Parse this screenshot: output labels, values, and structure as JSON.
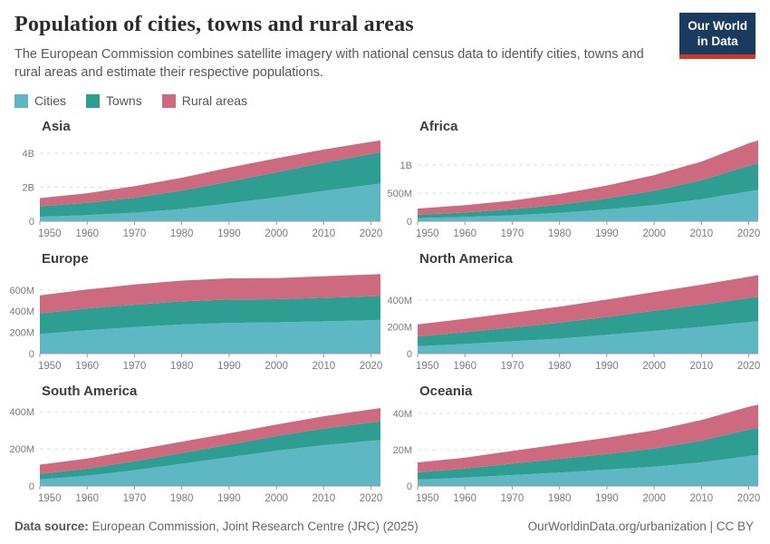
{
  "header": {
    "title": "Population of cities, towns and rural areas",
    "subtitle": "The European Commission combines satellite imagery with national census data to identify cities, towns and rural areas and estimate their respective populations."
  },
  "logo": {
    "line1": "Our World",
    "line2": "in Data",
    "bg_color": "#1a3a60",
    "accent_color": "#d0362a"
  },
  "legend": [
    {
      "label": "Cities",
      "color": "#5eb8c4"
    },
    {
      "label": "Towns",
      "color": "#2f9e92"
    },
    {
      "label": "Rural areas",
      "color": "#cd6a80"
    }
  ],
  "footer": {
    "source_label": "Data source:",
    "source": "European Commission, Joint Research Centre (JRC) (2025)",
    "credit": "OurWorldinData.org/urbanization | CC BY"
  },
  "chart_data": [
    {
      "type": "area",
      "stacked": true,
      "title": "Asia",
      "unit": "billion people",
      "x": [
        1950,
        1960,
        1970,
        1980,
        1990,
        2000,
        2010,
        2020,
        2022
      ],
      "xlim": [
        1950,
        2022
      ],
      "xticks": [
        1950,
        1960,
        1970,
        1980,
        1990,
        2000,
        2010,
        2020
      ],
      "yticks": [
        {
          "v": 0,
          "label": "0"
        },
        {
          "v": 2,
          "label": "2B"
        },
        {
          "v": 4,
          "label": "4B"
        }
      ],
      "ymax": 4.8,
      "series": [
        {
          "name": "Cities",
          "values": [
            0.26,
            0.36,
            0.5,
            0.72,
            1.05,
            1.4,
            1.78,
            2.15,
            2.22
          ]
        },
        {
          "name": "Towns",
          "values": [
            0.62,
            0.72,
            0.88,
            1.08,
            1.28,
            1.48,
            1.66,
            1.8,
            1.83
          ]
        },
        {
          "name": "Rural areas",
          "values": [
            0.48,
            0.57,
            0.68,
            0.76,
            0.82,
            0.82,
            0.78,
            0.72,
            0.7
          ]
        }
      ]
    },
    {
      "type": "area",
      "stacked": true,
      "title": "Africa",
      "unit": "million people",
      "x": [
        1950,
        1960,
        1970,
        1980,
        1990,
        2000,
        2010,
        2020,
        2022
      ],
      "xlim": [
        1950,
        2022
      ],
      "xticks": [
        1950,
        1960,
        1970,
        1980,
        1990,
        2000,
        2010,
        2020
      ],
      "yticks": [
        {
          "v": 0,
          "label": "0"
        },
        {
          "v": 500,
          "label": "500M"
        },
        {
          "v": 1000,
          "label": "1B"
        }
      ],
      "ymax": 1450,
      "series": [
        {
          "name": "Cities",
          "values": [
            55,
            75,
            105,
            150,
            210,
            285,
            390,
            530,
            555
          ]
        },
        {
          "name": "Towns",
          "values": [
            60,
            80,
            108,
            145,
            195,
            255,
            340,
            455,
            470
          ]
        },
        {
          "name": "Rural areas",
          "values": [
            110,
            130,
            155,
            190,
            230,
            280,
            330,
            400,
            410
          ]
        }
      ]
    },
    {
      "type": "area",
      "stacked": true,
      "title": "Europe",
      "unit": "million people",
      "x": [
        1950,
        1960,
        1970,
        1980,
        1990,
        2000,
        2010,
        2020,
        2022
      ],
      "xlim": [
        1950,
        2022
      ],
      "xticks": [
        1950,
        1960,
        1970,
        1980,
        1990,
        2000,
        2010,
        2020
      ],
      "yticks": [
        {
          "v": 0,
          "label": "0"
        },
        {
          "v": 200,
          "label": "200M"
        },
        {
          "v": 400,
          "label": "400M"
        },
        {
          "v": 600,
          "label": "600M"
        }
      ],
      "ymax": 770,
      "series": [
        {
          "name": "Cities",
          "values": [
            185,
            220,
            250,
            275,
            290,
            295,
            305,
            315,
            318
          ]
        },
        {
          "name": "Towns",
          "values": [
            195,
            205,
            212,
            218,
            220,
            218,
            222,
            225,
            226
          ]
        },
        {
          "name": "Rural areas",
          "values": [
            170,
            180,
            190,
            196,
            200,
            200,
            204,
            206,
            207
          ]
        }
      ]
    },
    {
      "type": "area",
      "stacked": true,
      "title": "North America",
      "unit": "million people",
      "x": [
        1950,
        1960,
        1970,
        1980,
        1990,
        2000,
        2010,
        2020,
        2022
      ],
      "xlim": [
        1950,
        2022
      ],
      "xticks": [
        1950,
        1960,
        1970,
        1980,
        1990,
        2000,
        2010,
        2020
      ],
      "yticks": [
        {
          "v": 0,
          "label": "0"
        },
        {
          "v": 200,
          "label": "200M"
        },
        {
          "v": 400,
          "label": "400M"
        }
      ],
      "ymax": 610,
      "series": [
        {
          "name": "Cities",
          "values": [
            55,
            72,
            92,
            112,
            140,
            170,
            200,
            235,
            242
          ]
        },
        {
          "name": "Towns",
          "values": [
            73,
            88,
            103,
            119,
            134,
            150,
            165,
            180,
            183
          ]
        },
        {
          "name": "Rural areas",
          "values": [
            90,
            100,
            110,
            120,
            130,
            140,
            150,
            160,
            162
          ]
        }
      ]
    },
    {
      "type": "area",
      "stacked": true,
      "title": "South America",
      "unit": "million people",
      "x": [
        1950,
        1960,
        1970,
        1980,
        1990,
        2000,
        2010,
        2020,
        2022
      ],
      "xlim": [
        1950,
        2022
      ],
      "xticks": [
        1950,
        1960,
        1970,
        1980,
        1990,
        2000,
        2010,
        2020
      ],
      "yticks": [
        {
          "v": 0,
          "label": "0"
        },
        {
          "v": 200,
          "label": "200M"
        },
        {
          "v": 400,
          "label": "400M"
        }
      ],
      "ymax": 440,
      "series": [
        {
          "name": "Cities",
          "values": [
            35,
            55,
            85,
            120,
            155,
            190,
            220,
            243,
            247
          ]
        },
        {
          "name": "Towns",
          "values": [
            30,
            38,
            48,
            58,
            68,
            79,
            90,
            99,
            101
          ]
        },
        {
          "name": "Rural areas",
          "values": [
            50,
            55,
            60,
            61,
            61,
            62,
            66,
            71,
            72
          ]
        }
      ]
    },
    {
      "type": "area",
      "stacked": true,
      "title": "Oceania",
      "unit": "million people",
      "x": [
        1950,
        1960,
        1970,
        1980,
        1990,
        2000,
        2010,
        2020,
        2022
      ],
      "xlim": [
        1950,
        2022
      ],
      "xticks": [
        1950,
        1960,
        1970,
        1980,
        1990,
        2000,
        2010,
        2020
      ],
      "yticks": [
        {
          "v": 0,
          "label": "0"
        },
        {
          "v": 20,
          "label": "20M"
        },
        {
          "v": 40,
          "label": "40M"
        }
      ],
      "ymax": 45,
      "series": [
        {
          "name": "Cities",
          "values": [
            3.5,
            4.6,
            6.0,
            7.4,
            9.0,
            10.6,
            13.0,
            16.5,
            17.0
          ]
        },
        {
          "name": "Towns",
          "values": [
            4.0,
            5.0,
            6.3,
            7.6,
            8.6,
            10.0,
            12.0,
            14.6,
            15.0
          ]
        },
        {
          "name": "Rural areas",
          "values": [
            5.5,
            6.0,
            7.0,
            8.0,
            9.0,
            10.0,
            11.4,
            12.6,
            12.8
          ]
        }
      ]
    }
  ]
}
